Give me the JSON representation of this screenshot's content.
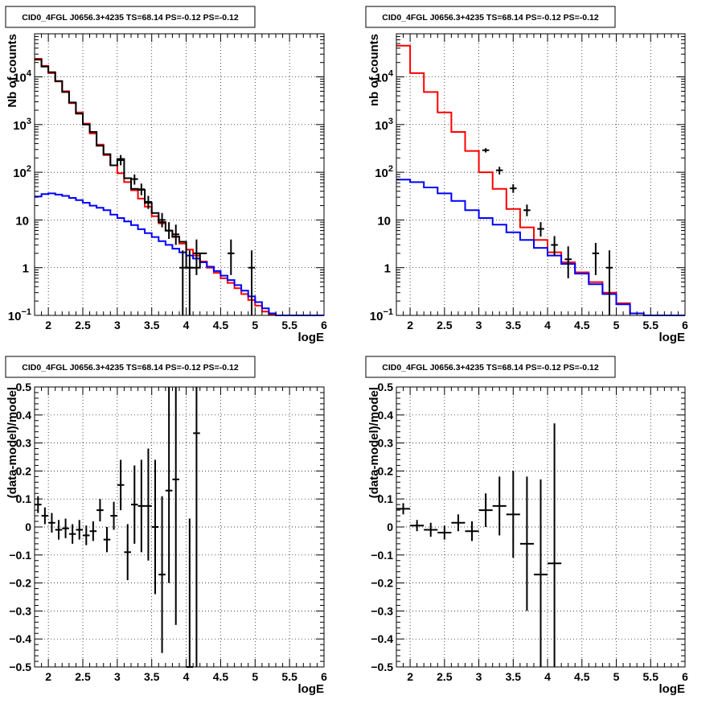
{
  "chart_data": [
    {
      "id": "spec_left",
      "type": "line",
      "title": "CID0_4FGL J0656.3+4235 TS=68.14 PS=-0.12 PS=-0.12",
      "xlabel": "logE",
      "ylabel": "Nb of counts",
      "xlim": [
        1.8,
        6
      ],
      "ylim": [
        0.1,
        80000
      ],
      "ylog": true,
      "grid": true,
      "xticks": [
        2,
        2.5,
        3,
        3.5,
        4,
        4.5,
        5,
        5.5,
        6
      ],
      "xtick_labels": [
        "2",
        "2.5",
        "3",
        "3.5",
        "4",
        "4.5",
        "5",
        "5.5",
        "6"
      ],
      "yticks": [
        0.1,
        1,
        10,
        100,
        1000,
        10000
      ],
      "ytick_labels": [
        [
          "10",
          "−1"
        ],
        [
          "1",
          ""
        ],
        [
          "10",
          ""
        ],
        [
          "10",
          "2"
        ],
        [
          "10",
          "3"
        ],
        [
          "10",
          "4"
        ]
      ],
      "bin_edges": [
        1.8,
        1.9,
        2.0,
        2.1,
        2.2,
        2.3,
        2.4,
        2.5,
        2.6,
        2.7,
        2.8,
        2.9,
        3.0,
        3.1,
        3.2,
        3.3,
        3.4,
        3.5,
        3.6,
        3.7,
        3.8,
        3.9,
        4.0,
        4.1,
        4.2,
        4.3,
        4.4,
        4.5,
        4.6,
        4.7,
        4.8,
        4.9,
        5.0,
        5.1,
        5.2,
        5.3,
        5.4,
        5.5,
        5.6,
        5.7,
        5.8,
        5.9,
        6.0
      ],
      "series": [
        {
          "color": "#ff0000",
          "values": [
            24000,
            17000,
            12000,
            8000,
            5000,
            2800,
            1800,
            1050,
            650,
            380,
            230,
            140,
            95,
            62,
            42,
            28,
            19,
            12,
            8.5,
            6,
            4.4,
            3.2,
            2.4,
            1.8,
            1.35,
            1.0,
            0.78,
            0.6,
            0.48,
            0.37,
            0.28,
            0.21,
            0.16,
            0.12,
            0.105,
            0.1,
            0.1,
            0.1,
            0.1,
            0.1,
            0.1,
            0.1
          ]
        },
        {
          "color": "#0000ff",
          "values": [
            31,
            35,
            36,
            34,
            32,
            29,
            26,
            23,
            20,
            18,
            16,
            13,
            11,
            9.3,
            7.8,
            6.4,
            5.3,
            4.4,
            3.6,
            3.0,
            2.5,
            2.1,
            1.8,
            1.55,
            1.3,
            1.05,
            0.85,
            0.68,
            0.55,
            0.43,
            0.33,
            0.25,
            0.19,
            0.14,
            0.11,
            0.1,
            0.1,
            0.1,
            0.1,
            0.1,
            0.1,
            0.1
          ]
        },
        {
          "color": "#000000",
          "values": [
            23000,
            16500,
            12500,
            8200,
            4800,
            2900,
            1700,
            1000,
            700,
            360,
            240,
            140,
            190,
            75,
            45,
            43,
            23,
            14,
            9,
            6,
            4.5,
            3.5,
            1,
            1,
            2,
            null,
            null,
            null,
            null,
            null,
            null,
            null,
            null,
            null,
            null,
            null,
            null,
            null,
            null,
            null,
            null,
            null
          ]
        }
      ],
      "data_points": [
        {
          "x": 3.05,
          "y": 180,
          "lo": 140,
          "hi": 230
        },
        {
          "x": 3.25,
          "y": 72,
          "lo": 55,
          "hi": 90
        },
        {
          "x": 3.35,
          "y": 44,
          "lo": 33,
          "hi": 58
        },
        {
          "x": 3.45,
          "y": 24,
          "lo": 17,
          "hi": 32
        },
        {
          "x": 3.65,
          "y": 10,
          "lo": 7,
          "hi": 14
        },
        {
          "x": 3.75,
          "y": 6,
          "lo": 4,
          "hi": 9
        },
        {
          "x": 3.85,
          "y": 5,
          "lo": 3,
          "hi": 8
        },
        {
          "x": 3.95,
          "y": 1,
          "lo": 0.1,
          "hi": 2.3
        },
        {
          "x": 4.05,
          "y": 1,
          "lo": 0.1,
          "hi": 2.3
        },
        {
          "x": 4.15,
          "y": 2,
          "lo": 0.7,
          "hi": 3.9
        },
        {
          "x": 4.65,
          "y": 2,
          "lo": 0.7,
          "hi": 3.9
        },
        {
          "x": 4.95,
          "y": 1,
          "lo": 0.1,
          "hi": 2.3
        }
      ]
    },
    {
      "id": "spec_right",
      "type": "line",
      "title": "CID0_4FGL J0656.3+4235 TS=68.14 PS=-0.12 PS=-0.12",
      "xlabel": "logE",
      "ylabel": "nb of counts",
      "xlim": [
        1.8,
        6
      ],
      "ylim": [
        0.1,
        80000
      ],
      "ylog": true,
      "grid": true,
      "xticks": [
        2,
        2.5,
        3,
        3.5,
        4,
        4.5,
        5,
        5.5,
        6
      ],
      "xtick_labels": [
        "2",
        "2.5",
        "3",
        "3.5",
        "4",
        "4.5",
        "5",
        "5.5",
        "6"
      ],
      "yticks": [
        0.1,
        1,
        10,
        100,
        1000,
        10000
      ],
      "ytick_labels": [
        [
          "10",
          "−1"
        ],
        [
          "1",
          ""
        ],
        [
          "10",
          ""
        ],
        [
          "10",
          "2"
        ],
        [
          "10",
          "3"
        ],
        [
          "10",
          "4"
        ]
      ],
      "bin_edges": [
        1.8,
        2.0,
        2.2,
        2.4,
        2.6,
        2.8,
        3.0,
        3.2,
        3.4,
        3.6,
        3.8,
        4.0,
        4.2,
        4.4,
        4.6,
        4.8,
        5.0,
        5.2,
        5.4,
        5.6,
        5.8,
        6.0
      ],
      "series": [
        {
          "color": "#ff0000",
          "values": [
            45000,
            12000,
            4800,
            1800,
            700,
            280,
            100,
            45,
            17,
            7,
            3.8,
            2.1,
            1.3,
            0.8,
            0.5,
            0.3,
            0.18,
            0.11,
            0.1,
            0.1,
            0.1
          ]
        },
        {
          "color": "#0000ff",
          "values": [
            70,
            62,
            48,
            36,
            25,
            16,
            11,
            8,
            5.5,
            3.8,
            2.6,
            1.8,
            1.2,
            0.75,
            0.45,
            0.28,
            0.17,
            0.11,
            0.1,
            0.1,
            0.1
          ]
        }
      ],
      "data_points": [
        {
          "x": 3.1,
          "y": 290,
          "lo": 260,
          "hi": 320
        },
        {
          "x": 3.3,
          "y": 110,
          "lo": 90,
          "hi": 130
        },
        {
          "x": 3.5,
          "y": 46,
          "lo": 37,
          "hi": 56
        },
        {
          "x": 3.7,
          "y": 16,
          "lo": 12,
          "hi": 21
        },
        {
          "x": 3.9,
          "y": 6.5,
          "lo": 4.5,
          "hi": 9
        },
        {
          "x": 4.1,
          "y": 3,
          "lo": 1.8,
          "hi": 4.6
        },
        {
          "x": 4.3,
          "y": 1.5,
          "lo": 0.6,
          "hi": 2.8
        },
        {
          "x": 4.7,
          "y": 2,
          "lo": 0.7,
          "hi": 3.3
        },
        {
          "x": 4.9,
          "y": 1,
          "lo": 0.1,
          "hi": 2.3
        }
      ]
    },
    {
      "id": "resid_left",
      "type": "scatter",
      "title": "CID0_4FGL J0656.3+4235 TS=68.14 PS=-0.12 PS=-0.12",
      "xlabel": "logE",
      "ylabel": "(data-model)/model",
      "xlim": [
        1.8,
        6
      ],
      "ylim": [
        -0.5,
        0.5
      ],
      "ylog": false,
      "grid": true,
      "xticks": [
        2,
        2.5,
        3,
        3.5,
        4,
        4.5,
        5,
        5.5,
        6
      ],
      "xtick_labels": [
        "2",
        "2.5",
        "3",
        "3.5",
        "4",
        "4.5",
        "5",
        "5.5",
        "6"
      ],
      "yticks": [
        -0.5,
        -0.4,
        -0.3,
        -0.2,
        -0.1,
        0,
        0.1,
        0.2,
        0.3,
        0.4,
        0.5
      ],
      "ytick_labels": [
        "−0.5",
        "−0.4",
        "−0.3",
        "−0.2",
        "−0.1",
        "0",
        "0.1",
        "0.2",
        "0.3",
        "0.4",
        "0.5"
      ],
      "points": [
        {
          "x": 1.85,
          "y": 0.08,
          "lo": 0.05,
          "hi": 0.11,
          "xe": 0.05
        },
        {
          "x": 1.95,
          "y": 0.04,
          "lo": 0.01,
          "hi": 0.07,
          "xe": 0.05
        },
        {
          "x": 2.05,
          "y": 0.015,
          "lo": -0.02,
          "hi": 0.05,
          "xe": 0.05
        },
        {
          "x": 2.15,
          "y": -0.01,
          "lo": -0.045,
          "hi": 0.025,
          "xe": 0.05
        },
        {
          "x": 2.25,
          "y": -0.005,
          "lo": -0.04,
          "hi": 0.03,
          "xe": 0.05
        },
        {
          "x": 2.35,
          "y": -0.025,
          "lo": -0.06,
          "hi": 0.01,
          "xe": 0.05
        },
        {
          "x": 2.45,
          "y": -0.01,
          "lo": -0.045,
          "hi": 0.025,
          "xe": 0.05
        },
        {
          "x": 2.55,
          "y": -0.03,
          "lo": -0.065,
          "hi": 0.005,
          "xe": 0.05
        },
        {
          "x": 2.65,
          "y": -0.015,
          "lo": -0.05,
          "hi": 0.02,
          "xe": 0.05
        },
        {
          "x": 2.75,
          "y": 0.06,
          "lo": 0.02,
          "hi": 0.1,
          "xe": 0.05
        },
        {
          "x": 2.85,
          "y": -0.045,
          "lo": -0.09,
          "hi": 0.0,
          "xe": 0.05
        },
        {
          "x": 2.95,
          "y": 0.04,
          "lo": -0.01,
          "hi": 0.09,
          "xe": 0.05
        },
        {
          "x": 3.05,
          "y": 0.15,
          "lo": 0.06,
          "hi": 0.24,
          "xe": 0.05
        },
        {
          "x": 3.15,
          "y": -0.09,
          "lo": -0.19,
          "hi": 0.01,
          "xe": 0.05
        },
        {
          "x": 3.25,
          "y": 0.08,
          "lo": -0.06,
          "hi": 0.22,
          "xe": 0.05
        },
        {
          "x": 3.35,
          "y": 0.075,
          "lo": -0.09,
          "hi": 0.24,
          "xe": 0.05
        },
        {
          "x": 3.45,
          "y": 0.075,
          "lo": -0.12,
          "hi": 0.28,
          "xe": 0.05
        },
        {
          "x": 3.55,
          "y": 0.0,
          "lo": -0.24,
          "hi": 0.24,
          "xe": 0.05
        },
        {
          "x": 3.65,
          "y": -0.17,
          "lo": -0.45,
          "hi": 0.11,
          "xe": 0.05
        },
        {
          "x": 3.75,
          "y": 0.13,
          "lo": -0.2,
          "hi": 0.5,
          "xe": 0.05
        },
        {
          "x": 3.85,
          "y": 0.17,
          "lo": -0.35,
          "hi": 0.5,
          "xe": 0.05
        },
        {
          "x": 4.05,
          "y": -0.5,
          "lo": -0.5,
          "hi": 0.03,
          "xe": 0.05
        },
        {
          "x": 4.15,
          "y": 0.335,
          "lo": -0.5,
          "hi": 0.5,
          "xe": 0.05
        }
      ]
    },
    {
      "id": "resid_right",
      "type": "scatter",
      "title": "CID0_4FGL J0656.3+4235 TS=68.14 PS=-0.12 PS=-0.12",
      "xlabel": "logE",
      "ylabel": "(data-model)/model",
      "xlim": [
        1.8,
        6
      ],
      "ylim": [
        -0.5,
        0.5
      ],
      "ylog": false,
      "grid": true,
      "xticks": [
        2,
        2.5,
        3,
        3.5,
        4,
        4.5,
        5,
        5.5,
        6
      ],
      "xtick_labels": [
        "2",
        "2.5",
        "3",
        "3.5",
        "4",
        "4.5",
        "5",
        "5.5",
        "6"
      ],
      "yticks": [
        -0.5,
        -0.4,
        -0.3,
        -0.2,
        -0.1,
        0,
        0.1,
        0.2,
        0.3,
        0.4,
        0.5
      ],
      "ytick_labels": [
        "−0.5",
        "−0.4",
        "−0.3",
        "−0.2",
        "−0.1",
        "0",
        "0.1",
        "0.2",
        "0.3",
        "0.4",
        "0.5"
      ],
      "points": [
        {
          "x": 1.9,
          "y": 0.065,
          "lo": 0.045,
          "hi": 0.085,
          "xe": 0.1
        },
        {
          "x": 2.1,
          "y": 0.005,
          "lo": -0.015,
          "hi": 0.025,
          "xe": 0.1
        },
        {
          "x": 2.3,
          "y": -0.01,
          "lo": -0.035,
          "hi": 0.015,
          "xe": 0.1
        },
        {
          "x": 2.5,
          "y": -0.02,
          "lo": -0.045,
          "hi": 0.005,
          "xe": 0.1
        },
        {
          "x": 2.7,
          "y": 0.015,
          "lo": -0.015,
          "hi": 0.045,
          "xe": 0.1
        },
        {
          "x": 2.9,
          "y": -0.015,
          "lo": -0.05,
          "hi": 0.02,
          "xe": 0.1
        },
        {
          "x": 3.1,
          "y": 0.06,
          "lo": 0.0,
          "hi": 0.12,
          "xe": 0.1
        },
        {
          "x": 3.3,
          "y": 0.075,
          "lo": -0.03,
          "hi": 0.18,
          "xe": 0.1
        },
        {
          "x": 3.5,
          "y": 0.045,
          "lo": -0.11,
          "hi": 0.2,
          "xe": 0.1
        },
        {
          "x": 3.7,
          "y": -0.06,
          "lo": -0.3,
          "hi": 0.18,
          "xe": 0.1
        },
        {
          "x": 3.9,
          "y": -0.17,
          "lo": -0.5,
          "hi": 0.17,
          "xe": 0.1
        },
        {
          "x": 4.1,
          "y": -0.13,
          "lo": -0.5,
          "hi": 0.37,
          "xe": 0.1
        }
      ]
    }
  ]
}
